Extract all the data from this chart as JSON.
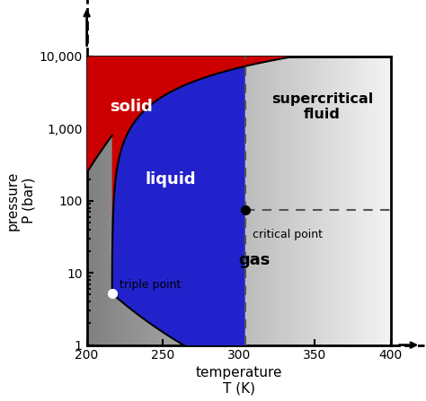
{
  "T_min": 200,
  "T_max": 400,
  "P_min": 1,
  "P_max": 10000,
  "triple_point": [
    216.6,
    5.18
  ],
  "critical_point": [
    304.2,
    73.8
  ],
  "xlabel": "temperature\nT (K)",
  "ylabel": "pressure\nP (bar)",
  "x_ticks": [
    200,
    250,
    300,
    350,
    400
  ],
  "y_ticks": [
    1,
    10,
    100,
    1000,
    10000
  ],
  "y_tick_labels": [
    "1",
    "10",
    "100",
    "1,000",
    "10,000"
  ],
  "label_solid": "solid",
  "label_liquid": "liquid",
  "label_gas": "gas",
  "label_supercritical": "supercritical\nfluid",
  "label_triple": "triple point",
  "label_critical": "critical point",
  "color_solid": "#cc0000",
  "color_liquid": "#2222cc",
  "color_gas_dark": "#888888",
  "color_gas_light": "#f0f0f0",
  "color_supercritical_dark": "#00aacc",
  "color_supercritical_light": "#e0f8ff",
  "figsize": [
    4.74,
    4.47
  ],
  "dpi": 100
}
